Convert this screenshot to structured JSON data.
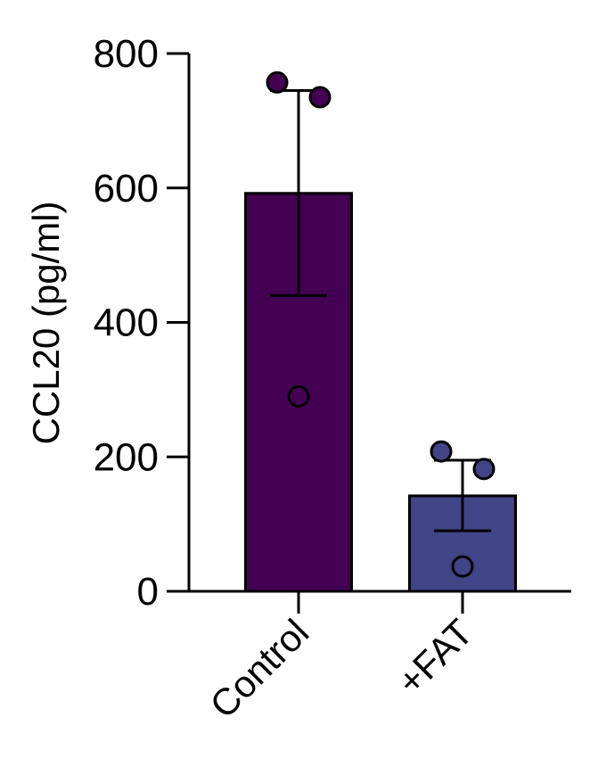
{
  "chart_data": {
    "type": "bar",
    "title": "",
    "ylabel": "CCL20 (pg/ml)",
    "xlabel": "",
    "ylim": [
      0,
      800
    ],
    "yticks": [
      0,
      200,
      400,
      600,
      800
    ],
    "categories": [
      "Control",
      "+FAT"
    ],
    "values": [
      592,
      142
    ],
    "error_upper": [
      745,
      195
    ],
    "error_lower": [
      440,
      90
    ],
    "points": [
      [
        757,
        735,
        290
      ],
      [
        208,
        182,
        37
      ]
    ],
    "colors": [
      "#440154",
      "#414487"
    ],
    "grid": false
  }
}
